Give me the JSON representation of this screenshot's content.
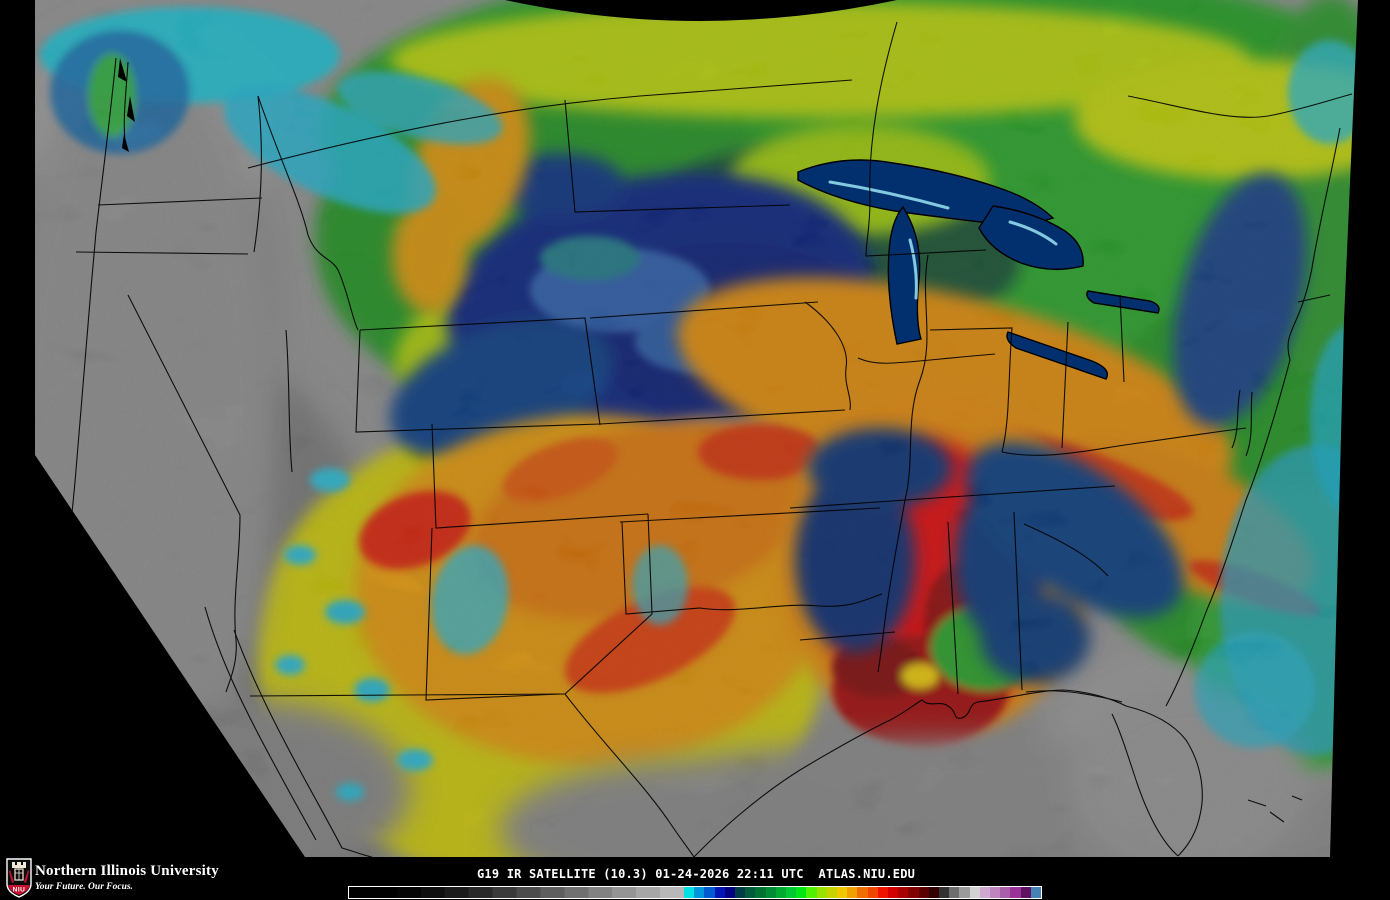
{
  "footer": {
    "organization": "Northern Illinois University",
    "tagline": "Your Future. Our Focus.",
    "shield_label": "NIU",
    "caption": "G19 IR SATELLITE (10.3) 01-24-2026 22:11 UTC  ATLAS.NIU.EDU",
    "colors": {
      "niu_red": "#c8102e",
      "text": "#ffffff"
    }
  },
  "colorbar": {
    "border_color": "#ffffff",
    "gray_ramp": [
      "#000000",
      "#000000",
      "#050505",
      "#0f0f0f",
      "#1b1b1b",
      "#292929",
      "#3a3a3a",
      "#4c4c4c",
      "#5e5e5e",
      "#707070",
      "#828282",
      "#949494",
      "#a6a6a6",
      "#b8b8b8"
    ],
    "segments": [
      "#00e1e1",
      "#0096dc",
      "#005ad2",
      "#0014b4",
      "#000082",
      "#003c46",
      "#005a3c",
      "#007332",
      "#008c32",
      "#00aa32",
      "#00c832",
      "#00e614",
      "#50f000",
      "#9be100",
      "#c8d200",
      "#f0c800",
      "#f0a000",
      "#f06e00",
      "#f04600",
      "#f01400",
      "#d20000",
      "#aa0000",
      "#820000",
      "#5a0000",
      "#320000",
      "#323232",
      "#6e6e6e",
      "#9b9b9b",
      "#d2d2d2",
      "#cfa7cf",
      "#bd84bd",
      "#aa5faa",
      "#993299",
      "#5f125f",
      "#4682b4"
    ]
  }
}
